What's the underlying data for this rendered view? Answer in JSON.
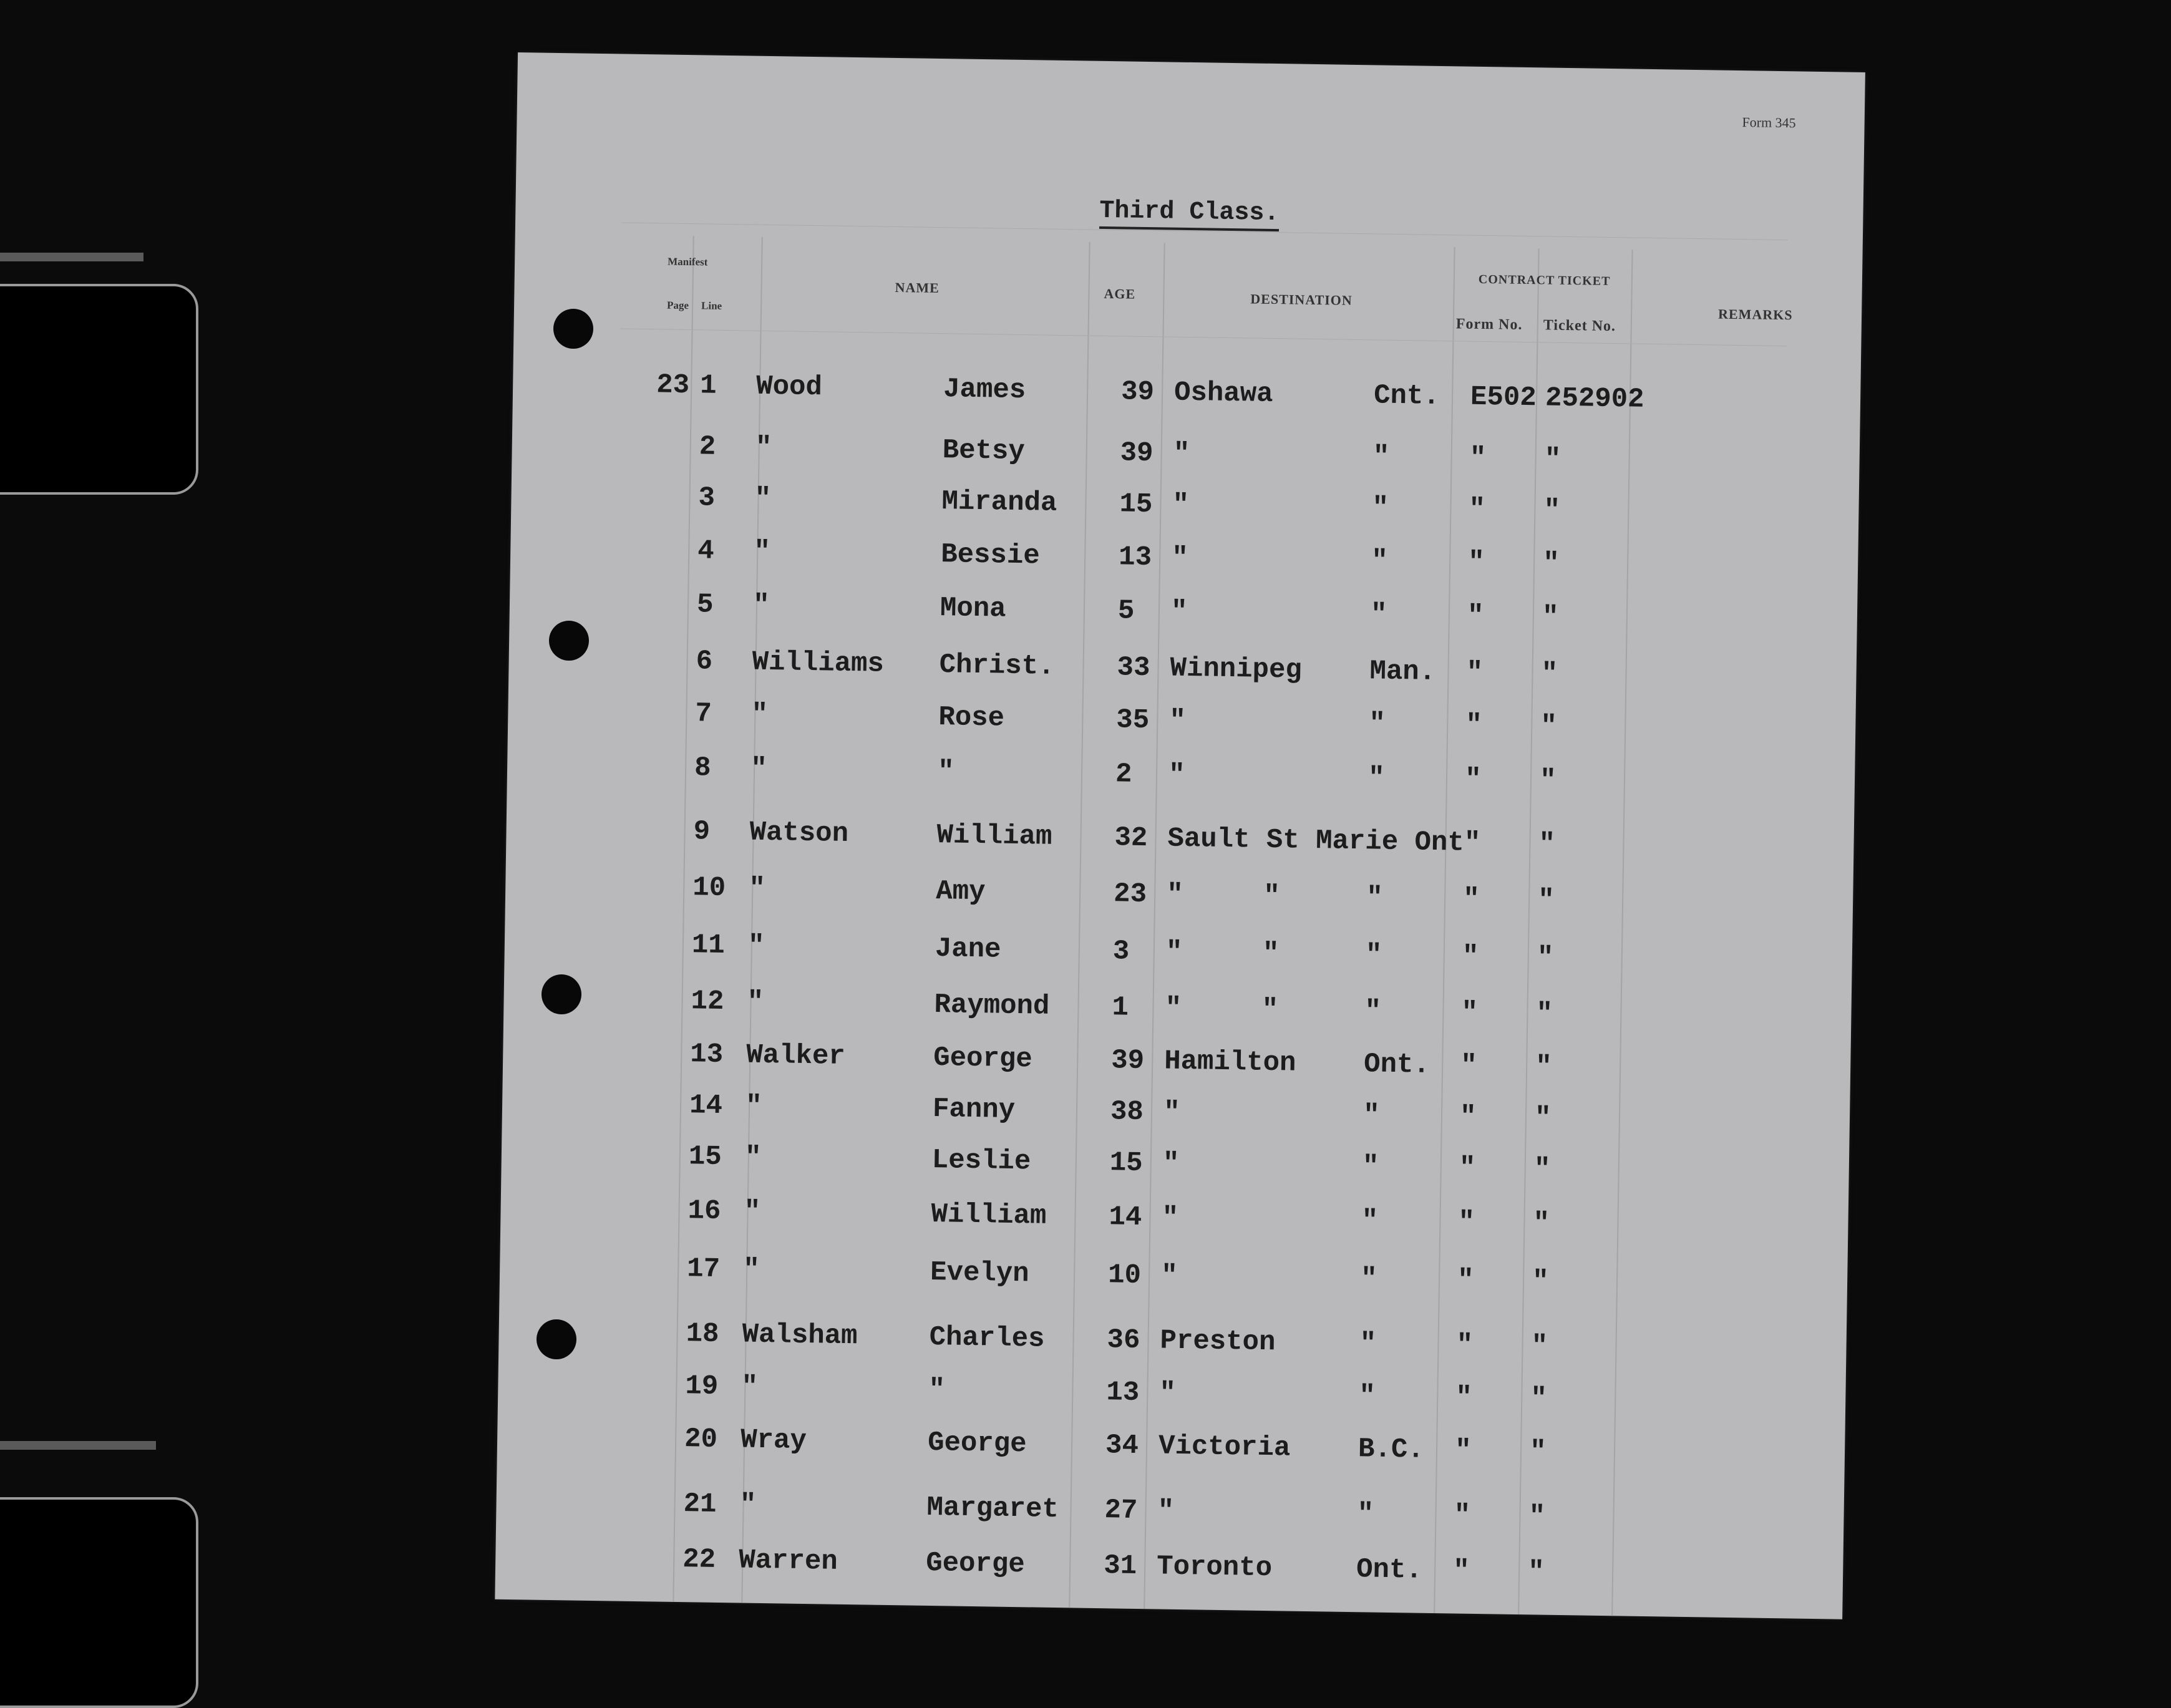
{
  "form_label": "Form 345",
  "title": "Third Class.",
  "headers": {
    "manifest": "Manifest",
    "page": "Page",
    "line": "Line",
    "name": "Name",
    "age": "Age",
    "destination": "Destination",
    "contract_ticket": "Contract Ticket",
    "form_no": "Form No.",
    "ticket_no": "Ticket No.",
    "remarks": "Remarks"
  },
  "rows": [
    {
      "page": "23",
      "line": "1",
      "surname": "Wood",
      "given": "James",
      "age": "39",
      "city": "Oshawa",
      "mid": "",
      "province": "Cnt.",
      "form": "E502",
      "ticket": "252902"
    },
    {
      "page": "",
      "line": "2",
      "surname": "\"",
      "given": "Betsy",
      "age": "39",
      "city": "\"",
      "mid": "",
      "province": "\"",
      "form": "\"",
      "ticket": "\""
    },
    {
      "page": "",
      "line": "3",
      "surname": "\"",
      "given": "Miranda",
      "age": "15",
      "city": "\"",
      "mid": "",
      "province": "\"",
      "form": "\"",
      "ticket": "\""
    },
    {
      "page": "",
      "line": "4",
      "surname": "\"",
      "given": "Bessie",
      "age": "13",
      "city": "\"",
      "mid": "",
      "province": "\"",
      "form": "\"",
      "ticket": "\""
    },
    {
      "page": "",
      "line": "5",
      "surname": "\"",
      "given": "Mona",
      "age": "5",
      "city": "\"",
      "mid": "",
      "province": "\"",
      "form": "\"",
      "ticket": "\""
    },
    {
      "page": "",
      "line": "6",
      "surname": "Williams",
      "given": "Christ.",
      "age": "33",
      "city": "Winnipeg",
      "mid": "",
      "province": "Man.",
      "form": "\"",
      "ticket": "\""
    },
    {
      "page": "",
      "line": "7",
      "surname": "\"",
      "given": "Rose",
      "age": "35",
      "city": "\"",
      "mid": "",
      "province": "\"",
      "form": "\"",
      "ticket": "\""
    },
    {
      "page": "",
      "line": "8",
      "surname": "\"",
      "given": "\"",
      "age": "2",
      "city": "\"",
      "mid": "",
      "province": "\"",
      "form": "\"",
      "ticket": "\""
    },
    {
      "page": "",
      "line": "9",
      "surname": "Watson",
      "given": "William",
      "age": "32",
      "city": "Sault St Marie Ont\"",
      "mid": "",
      "province": "",
      "form": "",
      "ticket": "\""
    },
    {
      "page": "",
      "line": "10",
      "surname": "\"",
      "given": "Amy",
      "age": "23",
      "city": "\"",
      "mid": "\"",
      "province": "\"",
      "form": "\"",
      "ticket": "\""
    },
    {
      "page": "",
      "line": "11",
      "surname": "\"",
      "given": "Jane",
      "age": "3",
      "city": "\"",
      "mid": "\"",
      "province": "\"",
      "form": "\"",
      "ticket": "\""
    },
    {
      "page": "",
      "line": "12",
      "surname": "\"",
      "given": "Raymond",
      "age": "1",
      "city": "\"",
      "mid": "\"",
      "province": "\"",
      "form": "\"",
      "ticket": "\""
    },
    {
      "page": "",
      "line": "13",
      "surname": "Walker",
      "given": "George",
      "age": "39",
      "city": "Hamilton",
      "mid": "",
      "province": "Ont.",
      "form": "\"",
      "ticket": "\""
    },
    {
      "page": "",
      "line": "14",
      "surname": "\"",
      "given": "Fanny",
      "age": "38",
      "city": "\"",
      "mid": "",
      "province": "\"",
      "form": "\"",
      "ticket": "\""
    },
    {
      "page": "",
      "line": "15",
      "surname": "\"",
      "given": "Leslie",
      "age": "15",
      "city": "\"",
      "mid": "",
      "province": "\"",
      "form": "\"",
      "ticket": "\""
    },
    {
      "page": "",
      "line": "16",
      "surname": "\"",
      "given": "William",
      "age": "14",
      "city": "\"",
      "mid": "",
      "province": "\"",
      "form": "\"",
      "ticket": "\""
    },
    {
      "page": "",
      "line": "17",
      "surname": "\"",
      "given": "Evelyn",
      "age": "10",
      "city": "\"",
      "mid": "",
      "province": "\"",
      "form": "\"",
      "ticket": "\""
    },
    {
      "page": "",
      "line": "18",
      "surname": "Walsham",
      "given": "Charles",
      "age": "36",
      "city": "Preston",
      "mid": "",
      "province": "\"",
      "form": "\"",
      "ticket": "\""
    },
    {
      "page": "",
      "line": "19",
      "surname": "\"",
      "given": "\"",
      "age": "13",
      "city": "\"",
      "mid": "",
      "province": "\"",
      "form": "\"",
      "ticket": "\""
    },
    {
      "page": "",
      "line": "20",
      "surname": "Wray",
      "given": "George",
      "age": "34",
      "city": "Victoria",
      "mid": "",
      "province": "B.C.",
      "form": "\"",
      "ticket": "\""
    },
    {
      "page": "",
      "line": "21",
      "surname": "\"",
      "given": "Margaret",
      "age": "27",
      "city": "\"",
      "mid": "",
      "province": "\"",
      "form": "\"",
      "ticket": "\""
    },
    {
      "page": "",
      "line": "22",
      "surname": "Warren",
      "given": "George",
      "age": "31",
      "city": "Toronto",
      "mid": "",
      "province": "Ont.",
      "form": "\"",
      "ticket": "\""
    }
  ]
}
